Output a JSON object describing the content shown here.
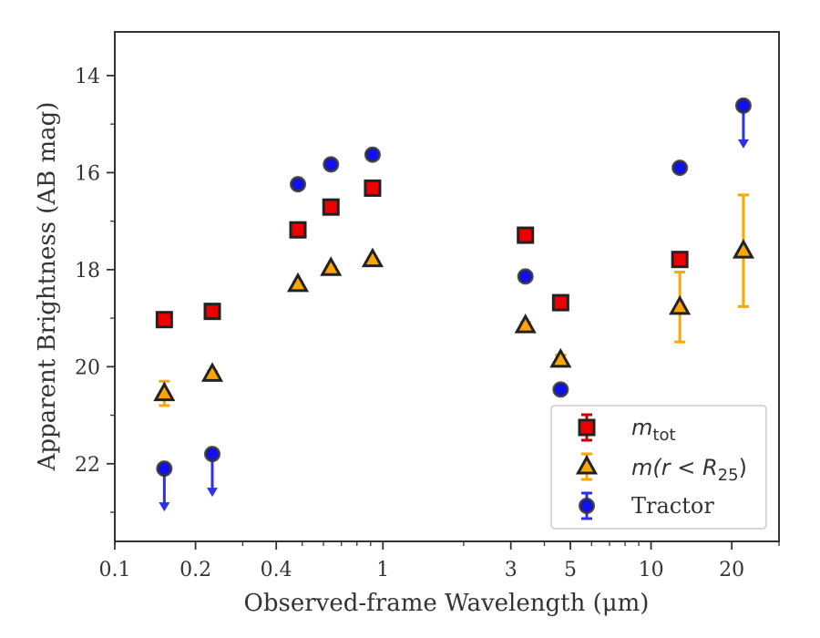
{
  "chart_data": {
    "type": "scatter",
    "title": "",
    "xlabel": "Observed-frame Wavelength (μm)",
    "ylabel": "Apparent Brightness (AB mag)",
    "xscale": "log",
    "xlim": [
      0.1,
      30
    ],
    "ylim": [
      23.6,
      13.1
    ],
    "y_inverted": true,
    "x_ticks": [
      0.1,
      0.2,
      0.4,
      1,
      3,
      5,
      10,
      20
    ],
    "x_tick_labels": [
      "0.1",
      "0.2",
      "0.4",
      "1",
      "3",
      "5",
      "10",
      "20"
    ],
    "y_ticks": [
      14,
      16,
      18,
      20,
      22
    ],
    "y_tick_labels": [
      "14",
      "16",
      "18",
      "20",
      "22"
    ],
    "grid": false,
    "legend_position": "lower-right",
    "series": [
      {
        "name": "m_tot",
        "legend_main": "m",
        "legend_sub": "tot",
        "marker": "square",
        "color": "#ee0000",
        "edge_color": "#222222",
        "error_color": "#cc0000",
        "x": [
          0.153,
          0.231,
          0.482,
          0.64,
          0.915,
          3.4,
          4.6,
          12.8
        ],
        "y": [
          19.03,
          18.86,
          17.18,
          16.71,
          16.32,
          17.29,
          18.68,
          17.79
        ],
        "yerr": [
          0.05,
          0.05,
          0.05,
          0.05,
          0.05,
          0.05,
          0.05,
          0.05
        ]
      },
      {
        "name": "m(r < R25)",
        "legend_text": "m(r < R",
        "legend_sub": "25",
        "marker": "triangle",
        "color": "#ffa500",
        "edge_color": "#222222",
        "error_color": "#ffa500",
        "x": [
          0.153,
          0.231,
          0.482,
          0.64,
          0.915,
          3.4,
          4.6,
          12.8,
          22.1
        ],
        "y": [
          20.55,
          20.15,
          18.3,
          17.97,
          17.79,
          19.15,
          19.86,
          18.77,
          17.61
        ],
        "yerr": [
          0.25,
          0.06,
          0.04,
          0.04,
          0.04,
          0.06,
          0.1,
          0.72,
          1.15
        ]
      },
      {
        "name": "Tractor",
        "marker": "circle",
        "color": "#1010ee",
        "edge_color": "#333333",
        "error_color": "#2f2fee",
        "x": [
          0.153,
          0.231,
          0.482,
          0.64,
          0.915,
          3.4,
          4.6,
          12.8,
          22.1
        ],
        "y": [
          22.1,
          21.8,
          16.24,
          15.83,
          15.63,
          18.14,
          20.47,
          15.9,
          14.62
        ],
        "yerr": [
          0.05,
          0.05,
          0.05,
          0.05,
          0.05,
          0.05,
          0.05,
          0.05,
          0.05
        ],
        "upper_limit": [
          true,
          true,
          false,
          false,
          false,
          false,
          false,
          false,
          true
        ]
      }
    ]
  }
}
